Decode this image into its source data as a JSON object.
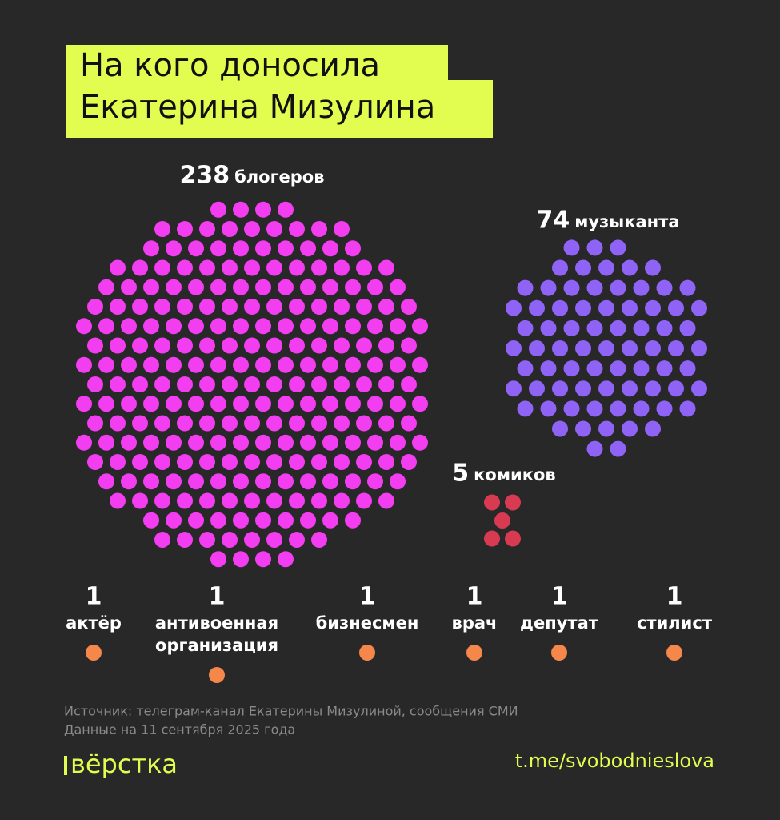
{
  "title_lines": [
    "На кого доносила",
    "Екатерина Мизулина"
  ],
  "groups": [
    {
      "count": 238,
      "label": "блогеров",
      "color": "#f23df0"
    },
    {
      "count": 74,
      "label": "музыканта",
      "color": "#8f63f6"
    },
    {
      "count": 5,
      "label": "комиков",
      "color": "#d83a52"
    }
  ],
  "singles": [
    {
      "count": 1,
      "label_lines": [
        "актёр"
      ]
    },
    {
      "count": 1,
      "label_lines": [
        "антивоенная",
        "организация"
      ]
    },
    {
      "count": 1,
      "label_lines": [
        "бизнесмен"
      ]
    },
    {
      "count": 1,
      "label_lines": [
        "врач"
      ]
    },
    {
      "count": 1,
      "label_lines": [
        "депутат"
      ]
    },
    {
      "count": 1,
      "label_lines": [
        "стилист"
      ]
    }
  ],
  "singles_color": "#f5874a",
  "source_lines": [
    "Источник: телеграм-канал Екатерины Мизулиной, сообщения СМИ",
    "Данные на 11 сентября 2025 года"
  ],
  "logo": "вёрстка",
  "link": "t.me/svobodnieslova"
}
